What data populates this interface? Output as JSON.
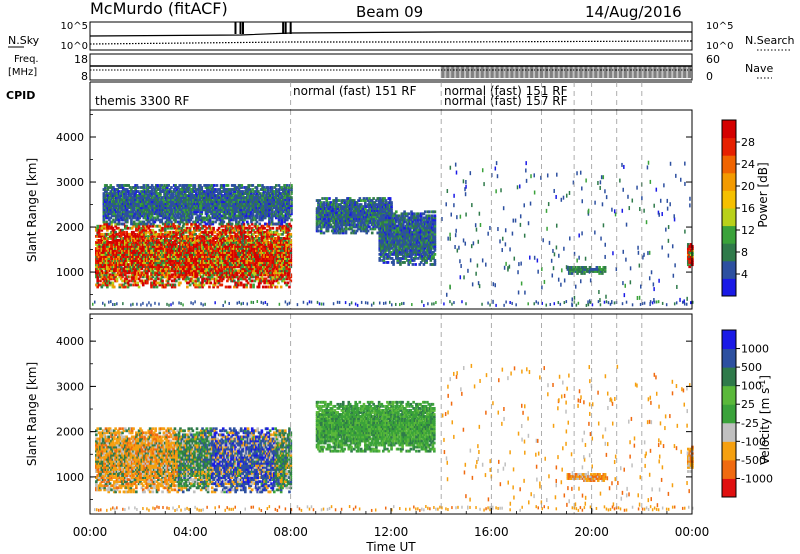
{
  "header": {
    "station": "McMurdo (fitACF)",
    "beam": "Beam 09",
    "date": "14/Aug/2016"
  },
  "chart_data": [
    {
      "type": "line",
      "label": "N.Sky",
      "right_label": "N.Search",
      "yticks_left": [
        "10^5",
        "10^0"
      ],
      "yticks_right": [
        "10^5",
        "10^0"
      ]
    },
    {
      "type": "scatter",
      "label": "Freq. [MHz]",
      "label_lines": [
        "Freq.",
        "[MHz]"
      ],
      "right_label": "Nave",
      "yticks_left": [
        "18",
        "8"
      ],
      "yticks_right": [
        "60",
        "0"
      ]
    },
    {
      "type": "table",
      "label": "CPID",
      "segments": [
        {
          "start_hour": 0,
          "text": "themis 3300 RF"
        },
        {
          "start_hour": 8,
          "text": "normal (fast) 151 RF"
        },
        {
          "start_hour": 14,
          "text": "normal (fast) 151 RF"
        },
        {
          "start_hour": 14,
          "text": "normal (fast) 157 RF",
          "row": 2
        }
      ]
    },
    {
      "type": "heatmap",
      "quantity": "Power",
      "ylabel": "Slant Range [km]",
      "yticks": [
        1000,
        2000,
        3000,
        4000
      ],
      "ylim": [
        180,
        4600
      ],
      "colorbar": {
        "label": "Power [dB]",
        "ticks": [
          4,
          8,
          12,
          16,
          20,
          24,
          28
        ],
        "colors": [
          "#1a1ae6",
          "#2d50a0",
          "#2f7a4a",
          "#3aa23a",
          "#b9d11a",
          "#f5c000",
          "#f39a00",
          "#f06400",
          "#e62000",
          "#d40000"
        ]
      },
      "regions": [
        {
          "t0": 0.2,
          "t1": 8.0,
          "r0": 700,
          "r1": 2100,
          "level": "high"
        },
        {
          "t0": 0.5,
          "t1": 8.0,
          "r0": 2100,
          "r1": 3000,
          "level": "low"
        },
        {
          "t0": 9.0,
          "t1": 12.0,
          "r0": 1900,
          "r1": 2700,
          "level": "low"
        },
        {
          "t0": 11.5,
          "t1": 13.7,
          "r0": 1200,
          "r1": 2400,
          "level": "low"
        },
        {
          "t0": 19.0,
          "t1": 20.5,
          "r0": 1000,
          "r1": 1150,
          "level": "mid"
        },
        {
          "t0": 23.8,
          "t1": 24.0,
          "r0": 1150,
          "r1": 1700,
          "level": "high"
        }
      ]
    },
    {
      "type": "heatmap",
      "quantity": "Velocity",
      "ylabel": "Slant Range [km]",
      "yticks": [
        1000,
        2000,
        3000,
        4000
      ],
      "ylim": [
        180,
        4600
      ],
      "colorbar": {
        "label": "Velocity [m s-1]",
        "label_main": "Velocity [m s",
        "label_sup": "-1",
        "label_end": "]",
        "ticks": [
          -1000,
          -500,
          -100,
          -25,
          25,
          100,
          500,
          1000
        ],
        "tick_labels": [
          "-1000",
          "-500",
          "-100",
          "-25",
          "25",
          "100",
          "500",
          "1000"
        ],
        "colors": [
          "#e01010",
          "#f06a10",
          "#f5a010",
          "#c0c0c0",
          "#3aa23a",
          "#5ab83a",
          "#2f7a4a",
          "#2d50a0",
          "#1a1ae6"
        ]
      },
      "regions": [
        {
          "t0": 0.2,
          "t1": 8.0,
          "r0": 700,
          "r1": 2100,
          "level": "mixed"
        },
        {
          "t0": 9.0,
          "t1": 13.7,
          "r0": 1600,
          "r1": 2700,
          "level": "positive"
        },
        {
          "t0": 19.0,
          "t1": 20.5,
          "r0": 950,
          "r1": 1100,
          "level": "negative"
        },
        {
          "t0": 23.8,
          "t1": 24.0,
          "r0": 1150,
          "r1": 1700,
          "level": "negative"
        }
      ],
      "xlabel": "Time UT",
      "xticks": [
        "00:00",
        "04:00",
        "08:00",
        "12:00",
        "16:00",
        "20:00",
        "00:00"
      ],
      "xlim_hours": [
        0,
        24
      ]
    }
  ]
}
